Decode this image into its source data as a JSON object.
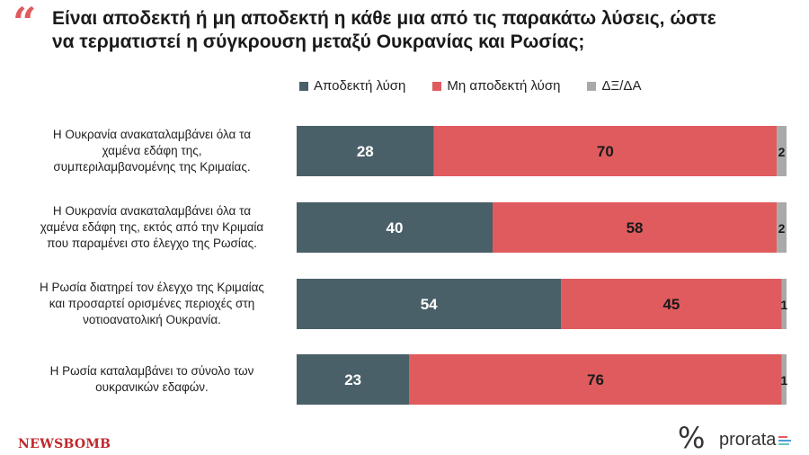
{
  "header": {
    "title_line1": "Είναι αποδεκτή ή μη αποδεκτή η κάθε μια από τις παρακάτω λύσεις, ώστε",
    "title_line2": "να τερματιστεί η σύγκρουση μεταξύ Ουκρανίας και Ρωσίας;"
  },
  "legend": [
    {
      "label": "Αποδεκτή λύση",
      "color": "#4a6068"
    },
    {
      "label": "Μη αποδεκτή λύση",
      "color": "#e05b5e"
    },
    {
      "label": "ΔΞ/ΔΑ",
      "color": "#a9a9a9"
    }
  ],
  "chart_data": {
    "type": "bar",
    "orientation": "horizontal",
    "stacked": true,
    "categories": [
      [
        "Η Ουκρανία ανακαταλαμβάνει όλα τα",
        "χαμένα εδάφη της,",
        "συμπεριλαμβανομένης της Κριμαίας."
      ],
      [
        "Η Ουκρανία ανακαταλαμβάνει όλα τα",
        "χαμένα εδάφη της, εκτός από την Κριμαία",
        "που παραμένει στο έλεγχο της Ρωσίας."
      ],
      [
        "Η Ρωσία διατηρεί τον έλεγχο της Κριμαίας",
        "και προσαρτεί ορισμένες περιοχές στη",
        "νοτιοανατολική Ουκρανία."
      ],
      [
        "Η Ρωσία καταλαμβάνει το σύνολο των",
        "ουκρανικών εδαφών."
      ]
    ],
    "series": [
      {
        "name": "Αποδεκτή λύση",
        "color": "#4a6068",
        "values": [
          28,
          40,
          54,
          23
        ]
      },
      {
        "name": "Μη αποδεκτή λύση",
        "color": "#e05b5e",
        "values": [
          70,
          58,
          45,
          76
        ]
      },
      {
        "name": "ΔΞ/ΔΑ",
        "color": "#a9a9a9",
        "values": [
          2,
          2,
          1,
          1
        ]
      }
    ],
    "xlim": [
      0,
      100
    ],
    "legend_position": "top"
  },
  "footer": {
    "newsbomb": "NEWSBOMB",
    "percent_symbol": "%",
    "prorata": "prorata",
    "prorata_colors": [
      "#e05b5e",
      "#4a9fd6",
      "#6dc3c4"
    ]
  }
}
